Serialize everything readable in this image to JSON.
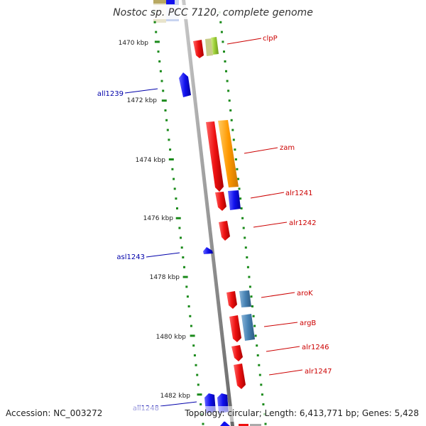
{
  "title": "Nostoc sp. PCC 7120, complete genome",
  "footer": {
    "accession": "Accession: NC_003272",
    "topology": "Topology: circular; Length: 6,413,771 bp; Genes: 5,428"
  },
  "kbp_labels": [
    "1470 kbp",
    "1472 kbp",
    "1474 kbp",
    "1476 kbp",
    "1478 kbp",
    "1480 kbp",
    "1482 kbp"
  ],
  "colors": {
    "forward_label": "#cc0000",
    "reverse_label": "#0000aa",
    "tick": "#1a8a1a",
    "backbone": "#999999",
    "red_gene": "#ee1111",
    "blue_gene": "#1111ee",
    "orange_gene": "#ff9900",
    "steel_gene": "#4682b4",
    "lime_gene": "#99cc33"
  },
  "genes": [
    {
      "name": "clpP",
      "strand": "forward"
    },
    {
      "name": "all1239",
      "strand": "reverse"
    },
    {
      "name": "zam",
      "strand": "forward"
    },
    {
      "name": "alr1241",
      "strand": "forward"
    },
    {
      "name": "alr1242",
      "strand": "forward"
    },
    {
      "name": "asl1243",
      "strand": "reverse"
    },
    {
      "name": "aroK",
      "strand": "forward"
    },
    {
      "name": "argB",
      "strand": "forward"
    },
    {
      "name": "alr1246",
      "strand": "forward"
    },
    {
      "name": "alr1247",
      "strand": "forward"
    },
    {
      "name": "all1248",
      "strand": "reverse"
    }
  ]
}
